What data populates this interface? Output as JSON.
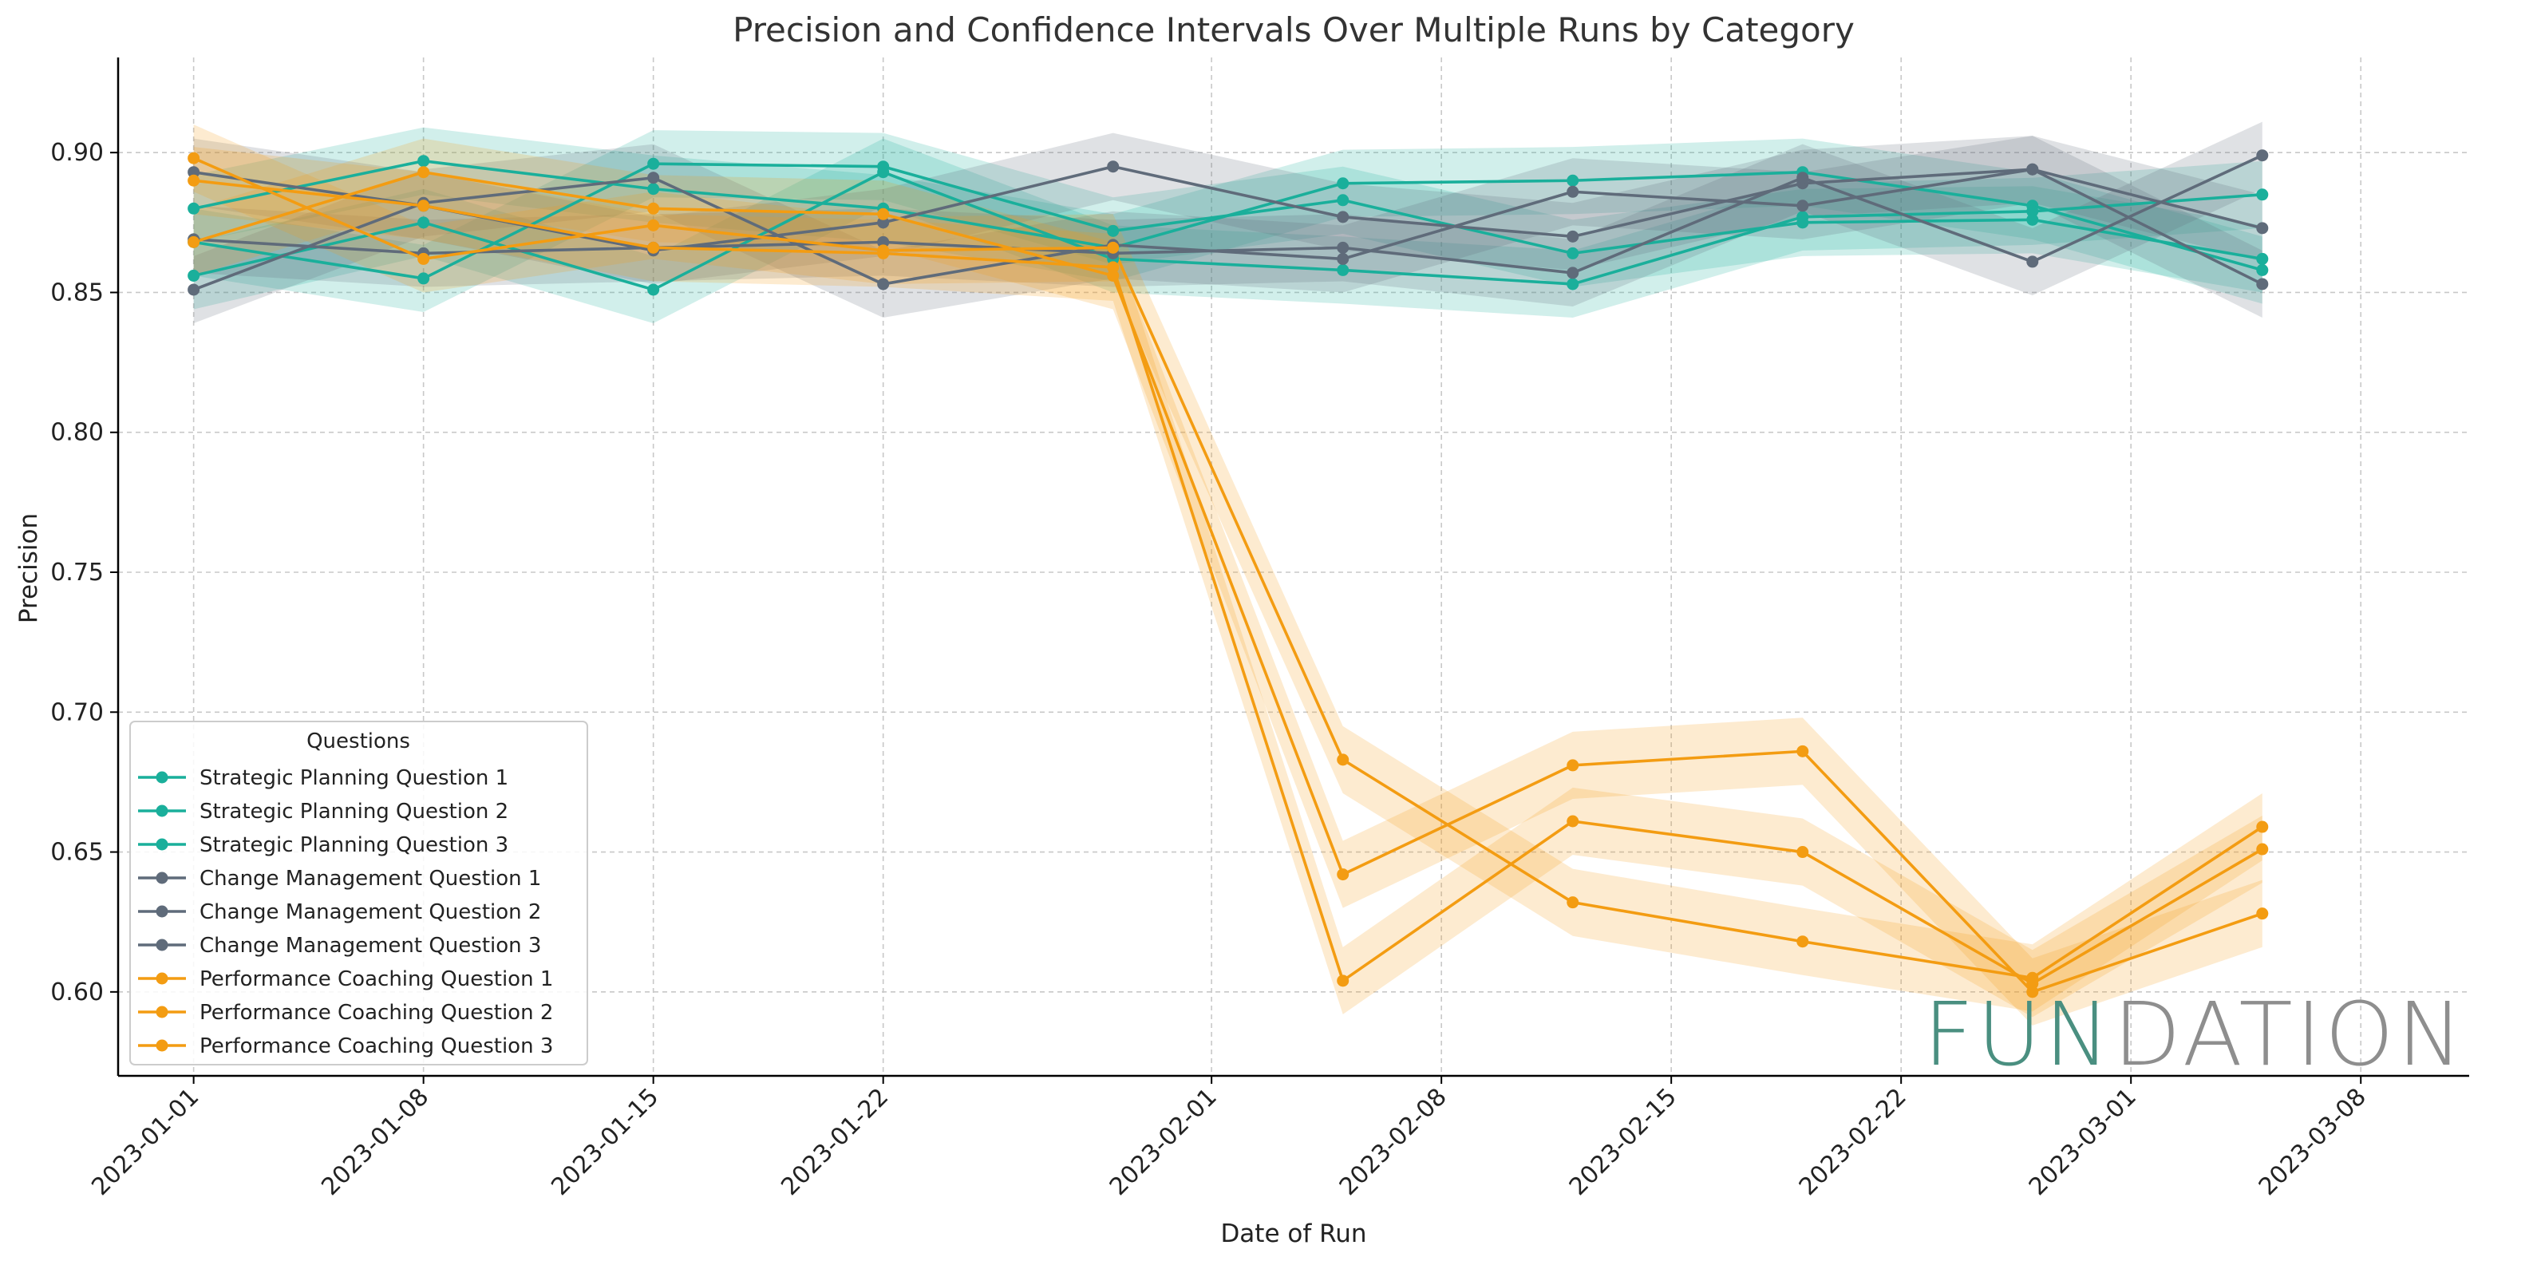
{
  "chart_data": {
    "type": "line",
    "title": "Precision and Confidence Intervals Over Multiple Runs by Category",
    "xlabel": "Date of Run",
    "ylabel": "Precision",
    "ylim": [
      0.57,
      0.934
    ],
    "yticks": [
      0.6,
      0.65,
      0.7,
      0.75,
      0.8,
      0.85,
      0.9
    ],
    "ytick_labels": [
      "0.60",
      "0.65",
      "0.70",
      "0.75",
      "0.80",
      "0.85",
      "0.90"
    ],
    "xlim_days": [
      -2.3,
      69.3
    ],
    "xticks_days": [
      0,
      7,
      14,
      21,
      31,
      38,
      45,
      52,
      59,
      66
    ],
    "xtick_labels": [
      "2023-01-01",
      "2023-01-08",
      "2023-01-15",
      "2023-01-22",
      "2023-02-01",
      "2023-02-08",
      "2023-02-15",
      "2023-02-22",
      "2023-03-01",
      "2023-03-08"
    ],
    "x_days": [
      0,
      7,
      14,
      21,
      28,
      35,
      42,
      49,
      56,
      63
    ],
    "grid": true,
    "legend_title": "Questions",
    "legend_position": "lower-left",
    "band_halfwidth": 0.012,
    "series": [
      {
        "name": "Strategic Planning Question 1",
        "category": "Strategic Planning",
        "color": "#1aaf9b",
        "values": [
          0.88,
          0.897,
          0.887,
          0.88,
          0.866,
          0.889,
          0.89,
          0.893,
          0.881,
          0.858
        ]
      },
      {
        "name": "Strategic Planning Question 2",
        "category": "Strategic Planning",
        "color": "#1aaf9b",
        "values": [
          0.856,
          0.875,
          0.851,
          0.893,
          0.862,
          0.858,
          0.853,
          0.877,
          0.879,
          0.885
        ]
      },
      {
        "name": "Strategic Planning Question 3",
        "category": "Strategic Planning",
        "color": "#1aaf9b",
        "values": [
          0.868,
          0.855,
          0.896,
          0.895,
          0.872,
          0.883,
          0.864,
          0.875,
          0.876,
          0.862
        ]
      },
      {
        "name": "Change Management Question 1",
        "category": "Change Management",
        "color": "#5f6b7a",
        "values": [
          0.893,
          0.881,
          0.865,
          0.875,
          0.895,
          0.877,
          0.87,
          0.889,
          0.894,
          0.873
        ]
      },
      {
        "name": "Change Management Question 2",
        "category": "Change Management",
        "color": "#5f6b7a",
        "values": [
          0.851,
          0.882,
          0.891,
          0.853,
          0.867,
          0.862,
          0.886,
          0.881,
          0.894,
          0.853
        ]
      },
      {
        "name": "Change Management Question 3",
        "category": "Change Management",
        "color": "#5f6b7a",
        "values": [
          0.869,
          0.864,
          0.866,
          0.868,
          0.864,
          0.866,
          0.857,
          0.891,
          0.861,
          0.899
        ]
      },
      {
        "name": "Performance Coaching Question 1",
        "category": "Performance Coaching",
        "color": "#f39c12",
        "values": [
          0.898,
          0.862,
          0.874,
          0.865,
          0.866,
          0.683,
          0.632,
          0.618,
          0.605,
          0.659
        ]
      },
      {
        "name": "Performance Coaching Question 2",
        "category": "Performance Coaching",
        "color": "#f39c12",
        "values": [
          0.868,
          0.893,
          0.88,
          0.878,
          0.856,
          0.642,
          0.681,
          0.686,
          0.6,
          0.628
        ]
      },
      {
        "name": "Performance Coaching Question 3",
        "category": "Performance Coaching",
        "color": "#f39c12",
        "values": [
          0.89,
          0.881,
          0.866,
          0.864,
          0.859,
          0.604,
          0.661,
          0.65,
          0.603,
          0.651
        ]
      }
    ]
  },
  "logo": {
    "text": "FUNDATION",
    "part1": "FUN",
    "part2": "DATION",
    "color1": "#4a8f80",
    "color2": "#8e8e8e"
  }
}
